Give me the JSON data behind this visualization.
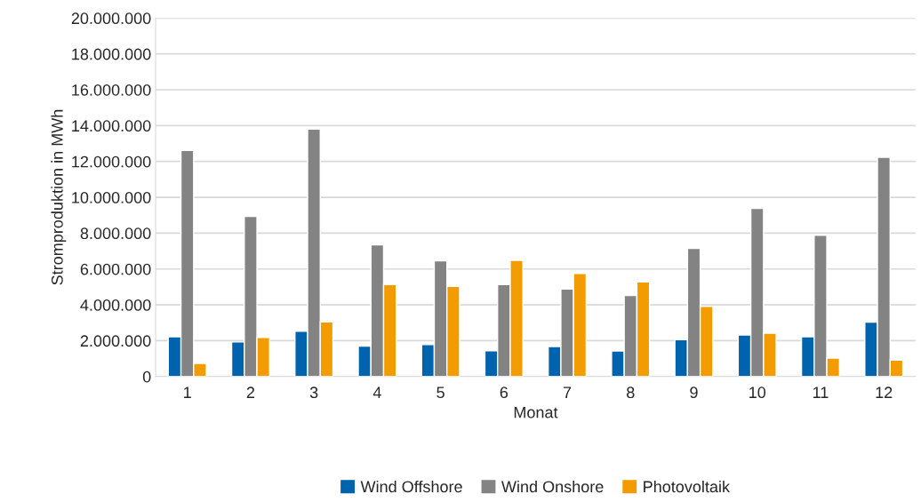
{
  "chart_data": {
    "type": "bar",
    "xlabel": "Monat",
    "ylabel": "Stromproduktion in MWh",
    "categories": [
      "1",
      "2",
      "3",
      "4",
      "5",
      "6",
      "7",
      "8",
      "9",
      "10",
      "11",
      "12"
    ],
    "series": [
      {
        "name": "Wind Offshore",
        "color": "#0063ae",
        "values": [
          2220000,
          1930000,
          2530000,
          1700000,
          1780000,
          1430000,
          1670000,
          1420000,
          2050000,
          2320000,
          2220000,
          3030000
        ]
      },
      {
        "name": "Wind Onshore",
        "color": "#838383",
        "values": [
          12620000,
          8930000,
          13800000,
          7350000,
          6450000,
          5130000,
          4880000,
          4520000,
          7150000,
          9380000,
          7880000,
          12230000
        ]
      },
      {
        "name": "Photovoltaik",
        "color": "#f39c00",
        "values": [
          730000,
          2180000,
          3050000,
          5130000,
          5030000,
          6480000,
          5750000,
          5280000,
          3920000,
          2420000,
          1030000,
          920000
        ]
      }
    ],
    "ylim": [
      0,
      20000000
    ],
    "yticks": [
      {
        "value": 0,
        "label": "0"
      },
      {
        "value": 2000000,
        "label": "2.000.000"
      },
      {
        "value": 4000000,
        "label": "4.000.000"
      },
      {
        "value": 6000000,
        "label": "6.000.000"
      },
      {
        "value": 8000000,
        "label": "8.000.000"
      },
      {
        "value": 10000000,
        "label": "10.000.000"
      },
      {
        "value": 12000000,
        "label": "12.000.000"
      },
      {
        "value": 14000000,
        "label": "14.000.000"
      },
      {
        "value": 16000000,
        "label": "16.000.000"
      },
      {
        "value": 18000000,
        "label": "18.000.000"
      },
      {
        "value": 20000000,
        "label": "20.000.000"
      }
    ],
    "grid": "y",
    "legend": "bottom"
  }
}
